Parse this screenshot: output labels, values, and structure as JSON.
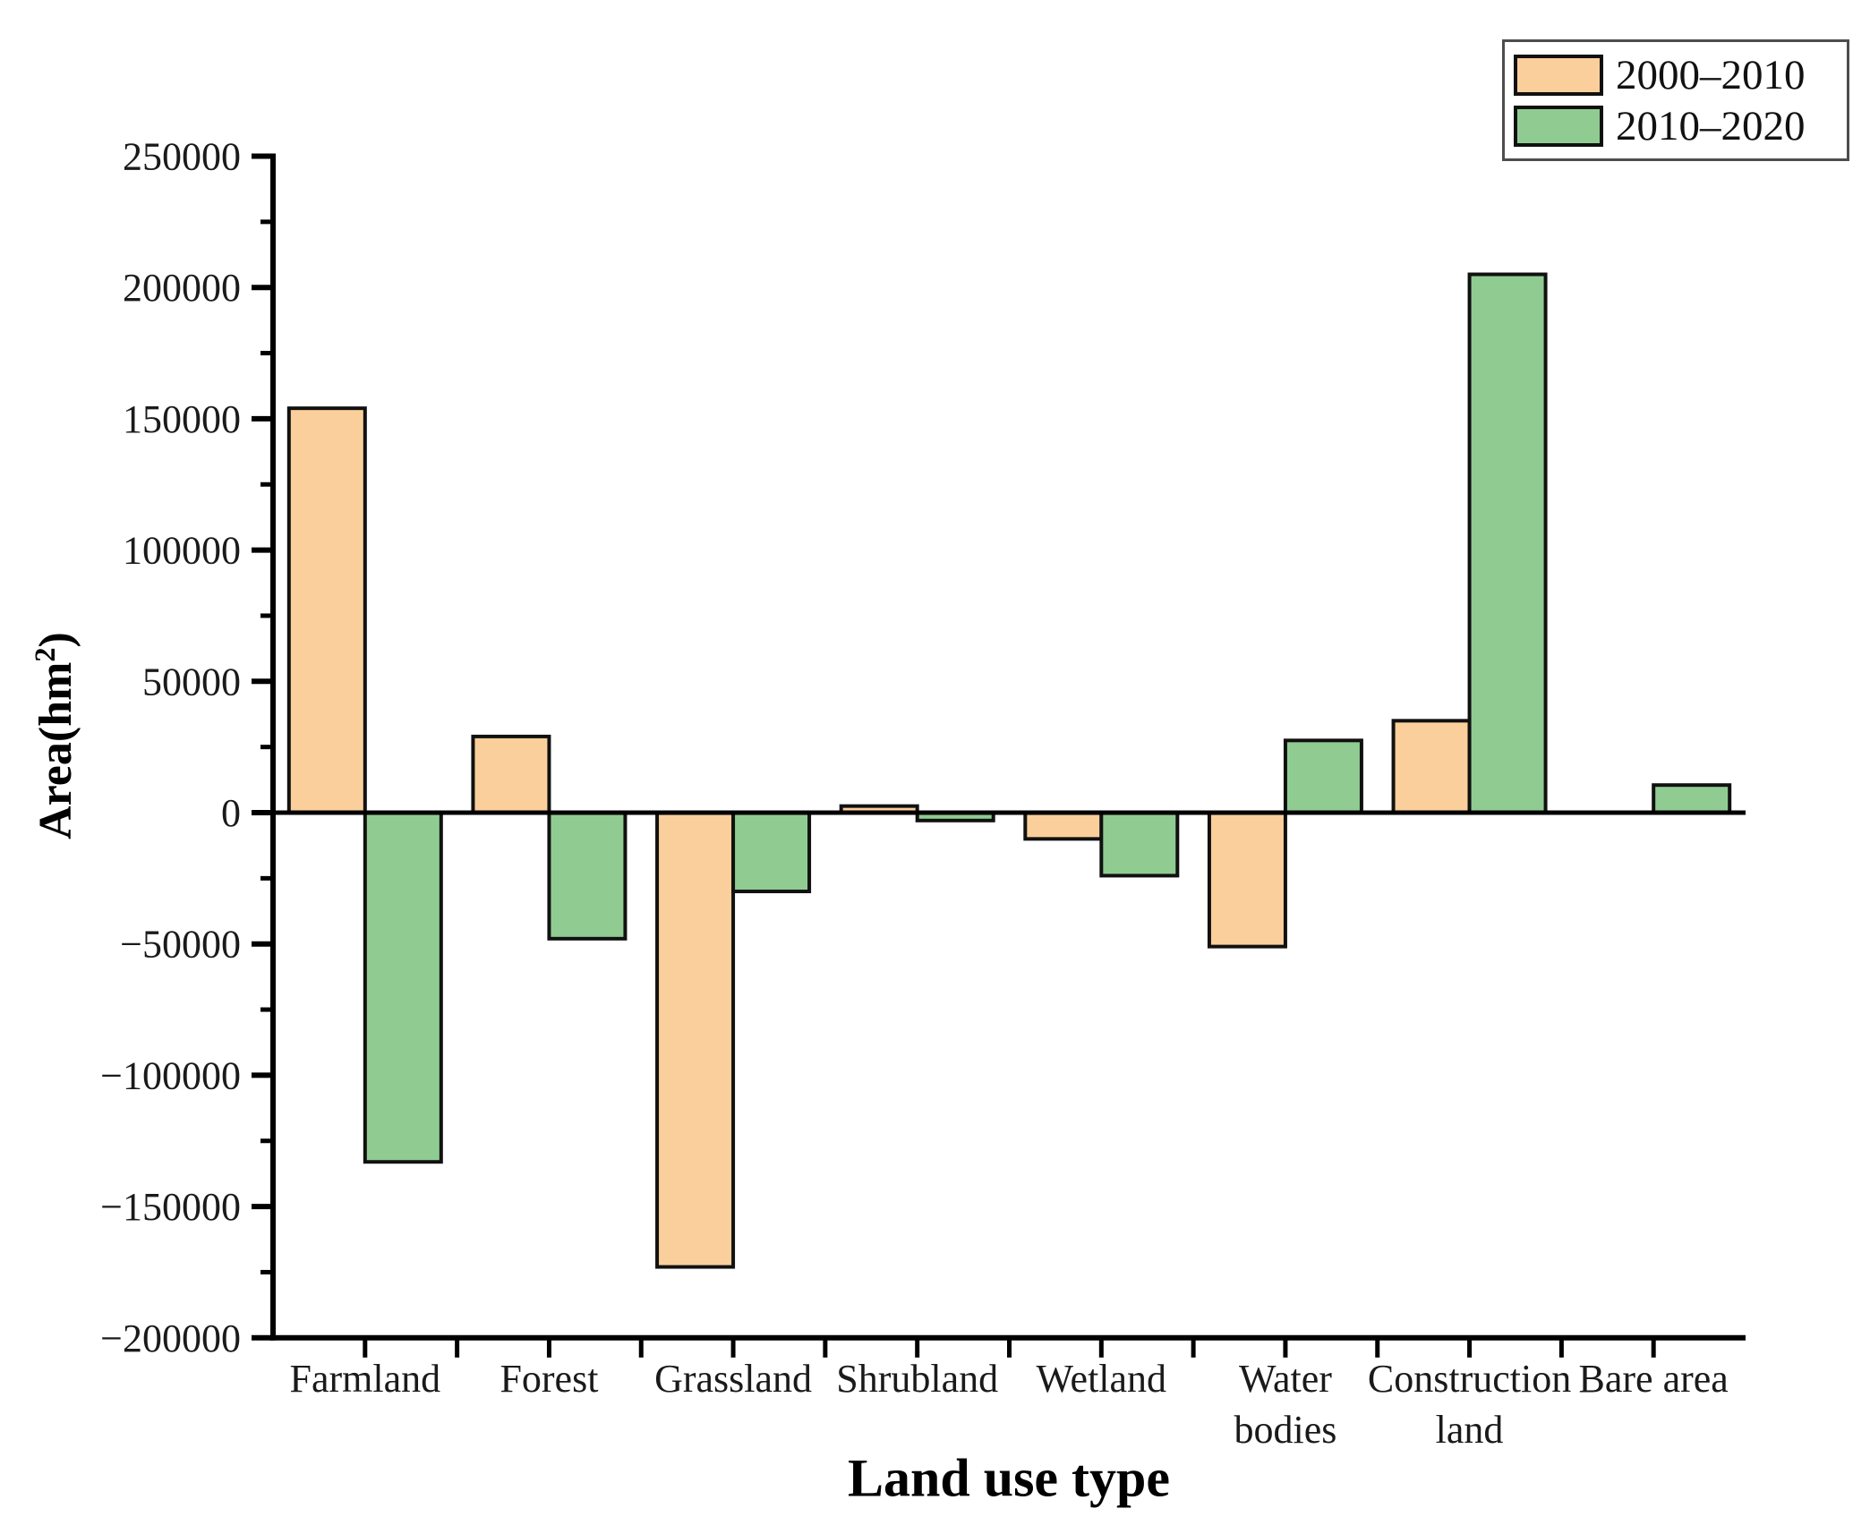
{
  "chart_data": {
    "type": "bar",
    "title": "",
    "xlabel": "Land use type",
    "ylabel": "Area(hm²)",
    "ylabel_parts": {
      "pre": "Area(hm",
      "sup": "2",
      "post": ")"
    },
    "categories": [
      "Farmland",
      "Forest",
      "Grassland",
      "Shrubland",
      "Wetland",
      "Water bodies",
      "Construction land",
      "Bare area"
    ],
    "category_display": [
      "Farmland",
      "Forest",
      "Grassland",
      "Shrubland",
      "Wetland",
      "Water\nbodies",
      "Construction\nland",
      "Bare area"
    ],
    "series": [
      {
        "name": "2000–2010",
        "color": "#FBCF9B",
        "values": [
          154000,
          29000,
          -173000,
          2500,
          -10000,
          -51000,
          35000,
          0
        ]
      },
      {
        "name": "2010–2020",
        "color": "#90CC92",
        "values": [
          -133000,
          -48000,
          -30000,
          -3000,
          -24000,
          27500,
          205000,
          10500
        ]
      }
    ],
    "ylim": [
      -200000,
      250000
    ],
    "y_tick_step": 50000,
    "y_minor_step": 25000,
    "y_tick_labels": [
      "250000",
      "200000",
      "150000",
      "100000",
      "50000",
      "0",
      "−50000",
      "−100000",
      "−150000",
      "−200000"
    ],
    "grid": false,
    "legend_position": "top-right",
    "axis_color": "#000000",
    "bar_edge_color": "#111111"
  }
}
